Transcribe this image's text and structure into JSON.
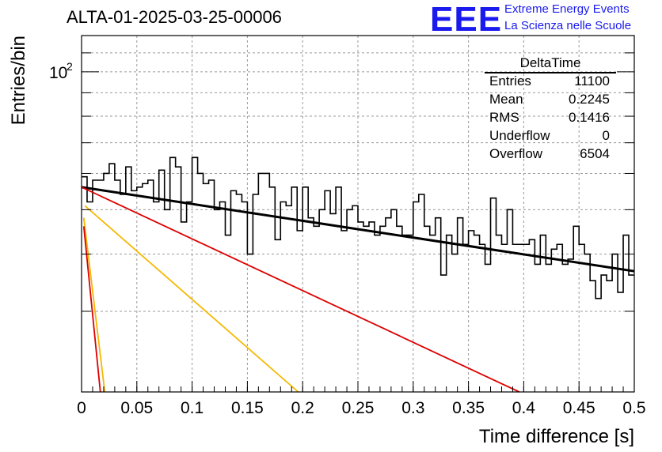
{
  "run_title": "ALTA-01-2025-03-25-00006",
  "logo": {
    "mark": "EEE",
    "line1": "Extreme Energy Events",
    "line2": "La Scienza nelle Scuole"
  },
  "stats": {
    "name": "DeltaTime",
    "rows": [
      {
        "label": "Entries",
        "value": "11100"
      },
      {
        "label": "Mean",
        "value": "0.2245"
      },
      {
        "label": "RMS",
        "value": "0.1416"
      },
      {
        "label": "Underflow",
        "value": "0"
      },
      {
        "label": "Overflow",
        "value": "6504"
      }
    ]
  },
  "chart_data": {
    "type": "histogram",
    "xlabel": "Time difference [s]",
    "ylabel": "Entries/bin",
    "xlim": [
      0,
      0.5
    ],
    "ylim": [
      20,
      120
    ],
    "yscale": "log",
    "grid": true,
    "x_ticks": [
      "0",
      "0.05",
      "0.1",
      "0.15",
      "0.2",
      "0.25",
      "0.3",
      "0.35",
      "0.4",
      "0.45",
      "0.5"
    ],
    "y_tick_labels": [
      {
        "value": 100,
        "label": "10",
        "sup": "2"
      }
    ],
    "bin_width": 0.005,
    "histogram_values": [
      59,
      52,
      58,
      58,
      60,
      63,
      58,
      54,
      62,
      55,
      56,
      57,
      58,
      52,
      61,
      50,
      65,
      62,
      47,
      52,
      65,
      60,
      57,
      58,
      50,
      52,
      44,
      55,
      54,
      52,
      40,
      54,
      60,
      60,
      56,
      43,
      52,
      51,
      56,
      45,
      56,
      48,
      46,
      50,
      55,
      49,
      56,
      45,
      50,
      51,
      47,
      46,
      47,
      44,
      46,
      48,
      50,
      46,
      44,
      44,
      52,
      54,
      46,
      44,
      48,
      36,
      44,
      40,
      48,
      42,
      45,
      44,
      42,
      38,
      53,
      44,
      42,
      50,
      42,
      42,
      42,
      43,
      38,
      44,
      38,
      41,
      42,
      38,
      39,
      46,
      42,
      40,
      35,
      32,
      36,
      35,
      40,
      33,
      44,
      36
    ],
    "series": [
      {
        "color": "#000000",
        "x": [
          0,
          0.5
        ],
        "y": [
          56.0,
          36.7
        ]
      },
      {
        "color": "#dd0000",
        "x": [
          0,
          0.396
        ],
        "y": [
          56.0,
          20.0
        ]
      },
      {
        "color": "#f5b800",
        "x": [
          0.003,
          0.196
        ],
        "y": [
          51.0,
          20.0
        ]
      },
      {
        "color": "#f5b800",
        "x": [
          0.002,
          0.021
        ],
        "y": [
          48.0,
          20.0
        ]
      },
      {
        "color": "#dd0000",
        "x": [
          0.002,
          0.017
        ],
        "y": [
          46.0,
          20.0
        ]
      }
    ]
  }
}
